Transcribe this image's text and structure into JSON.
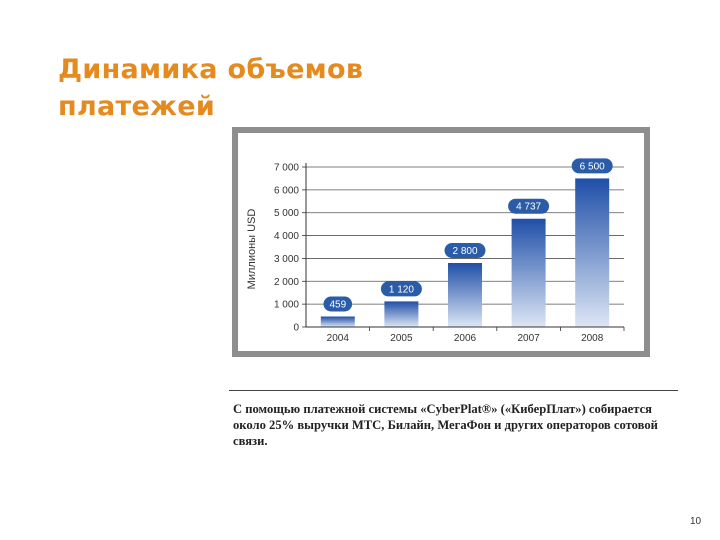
{
  "slide": {
    "title_line1": "Динамика объемов",
    "title_line2": "платежей",
    "caption": "С помощью платежной системы «CyberPlat®» («КиберПлат») собирается около 25% выручки МТС, Билайн, МегаФон и других операторов сотовой связи.",
    "page_number": "10"
  },
  "chart_data": {
    "type": "bar",
    "categories": [
      "2004",
      "2005",
      "2006",
      "2007",
      "2008"
    ],
    "values": [
      459,
      1120,
      2800,
      4737,
      6500
    ],
    "value_labels": [
      "459",
      "1 120",
      "2 800",
      "4 737",
      "6 500"
    ],
    "ylabel": "Миллионы USD",
    "ylim": [
      0,
      7000
    ],
    "yticks": [
      0,
      1000,
      2000,
      3000,
      4000,
      5000,
      6000,
      7000
    ],
    "ytick_labels": [
      "0",
      "1 000",
      "2 000",
      "3 000",
      "4 000",
      "5 000",
      "6 000",
      "7 000"
    ],
    "grid": true,
    "colors": {
      "bar_top": "#1f4fa8",
      "bar_bottom": "#dde6f5",
      "label_bubble": "#2a5ca8",
      "grid": "#555555"
    }
  }
}
